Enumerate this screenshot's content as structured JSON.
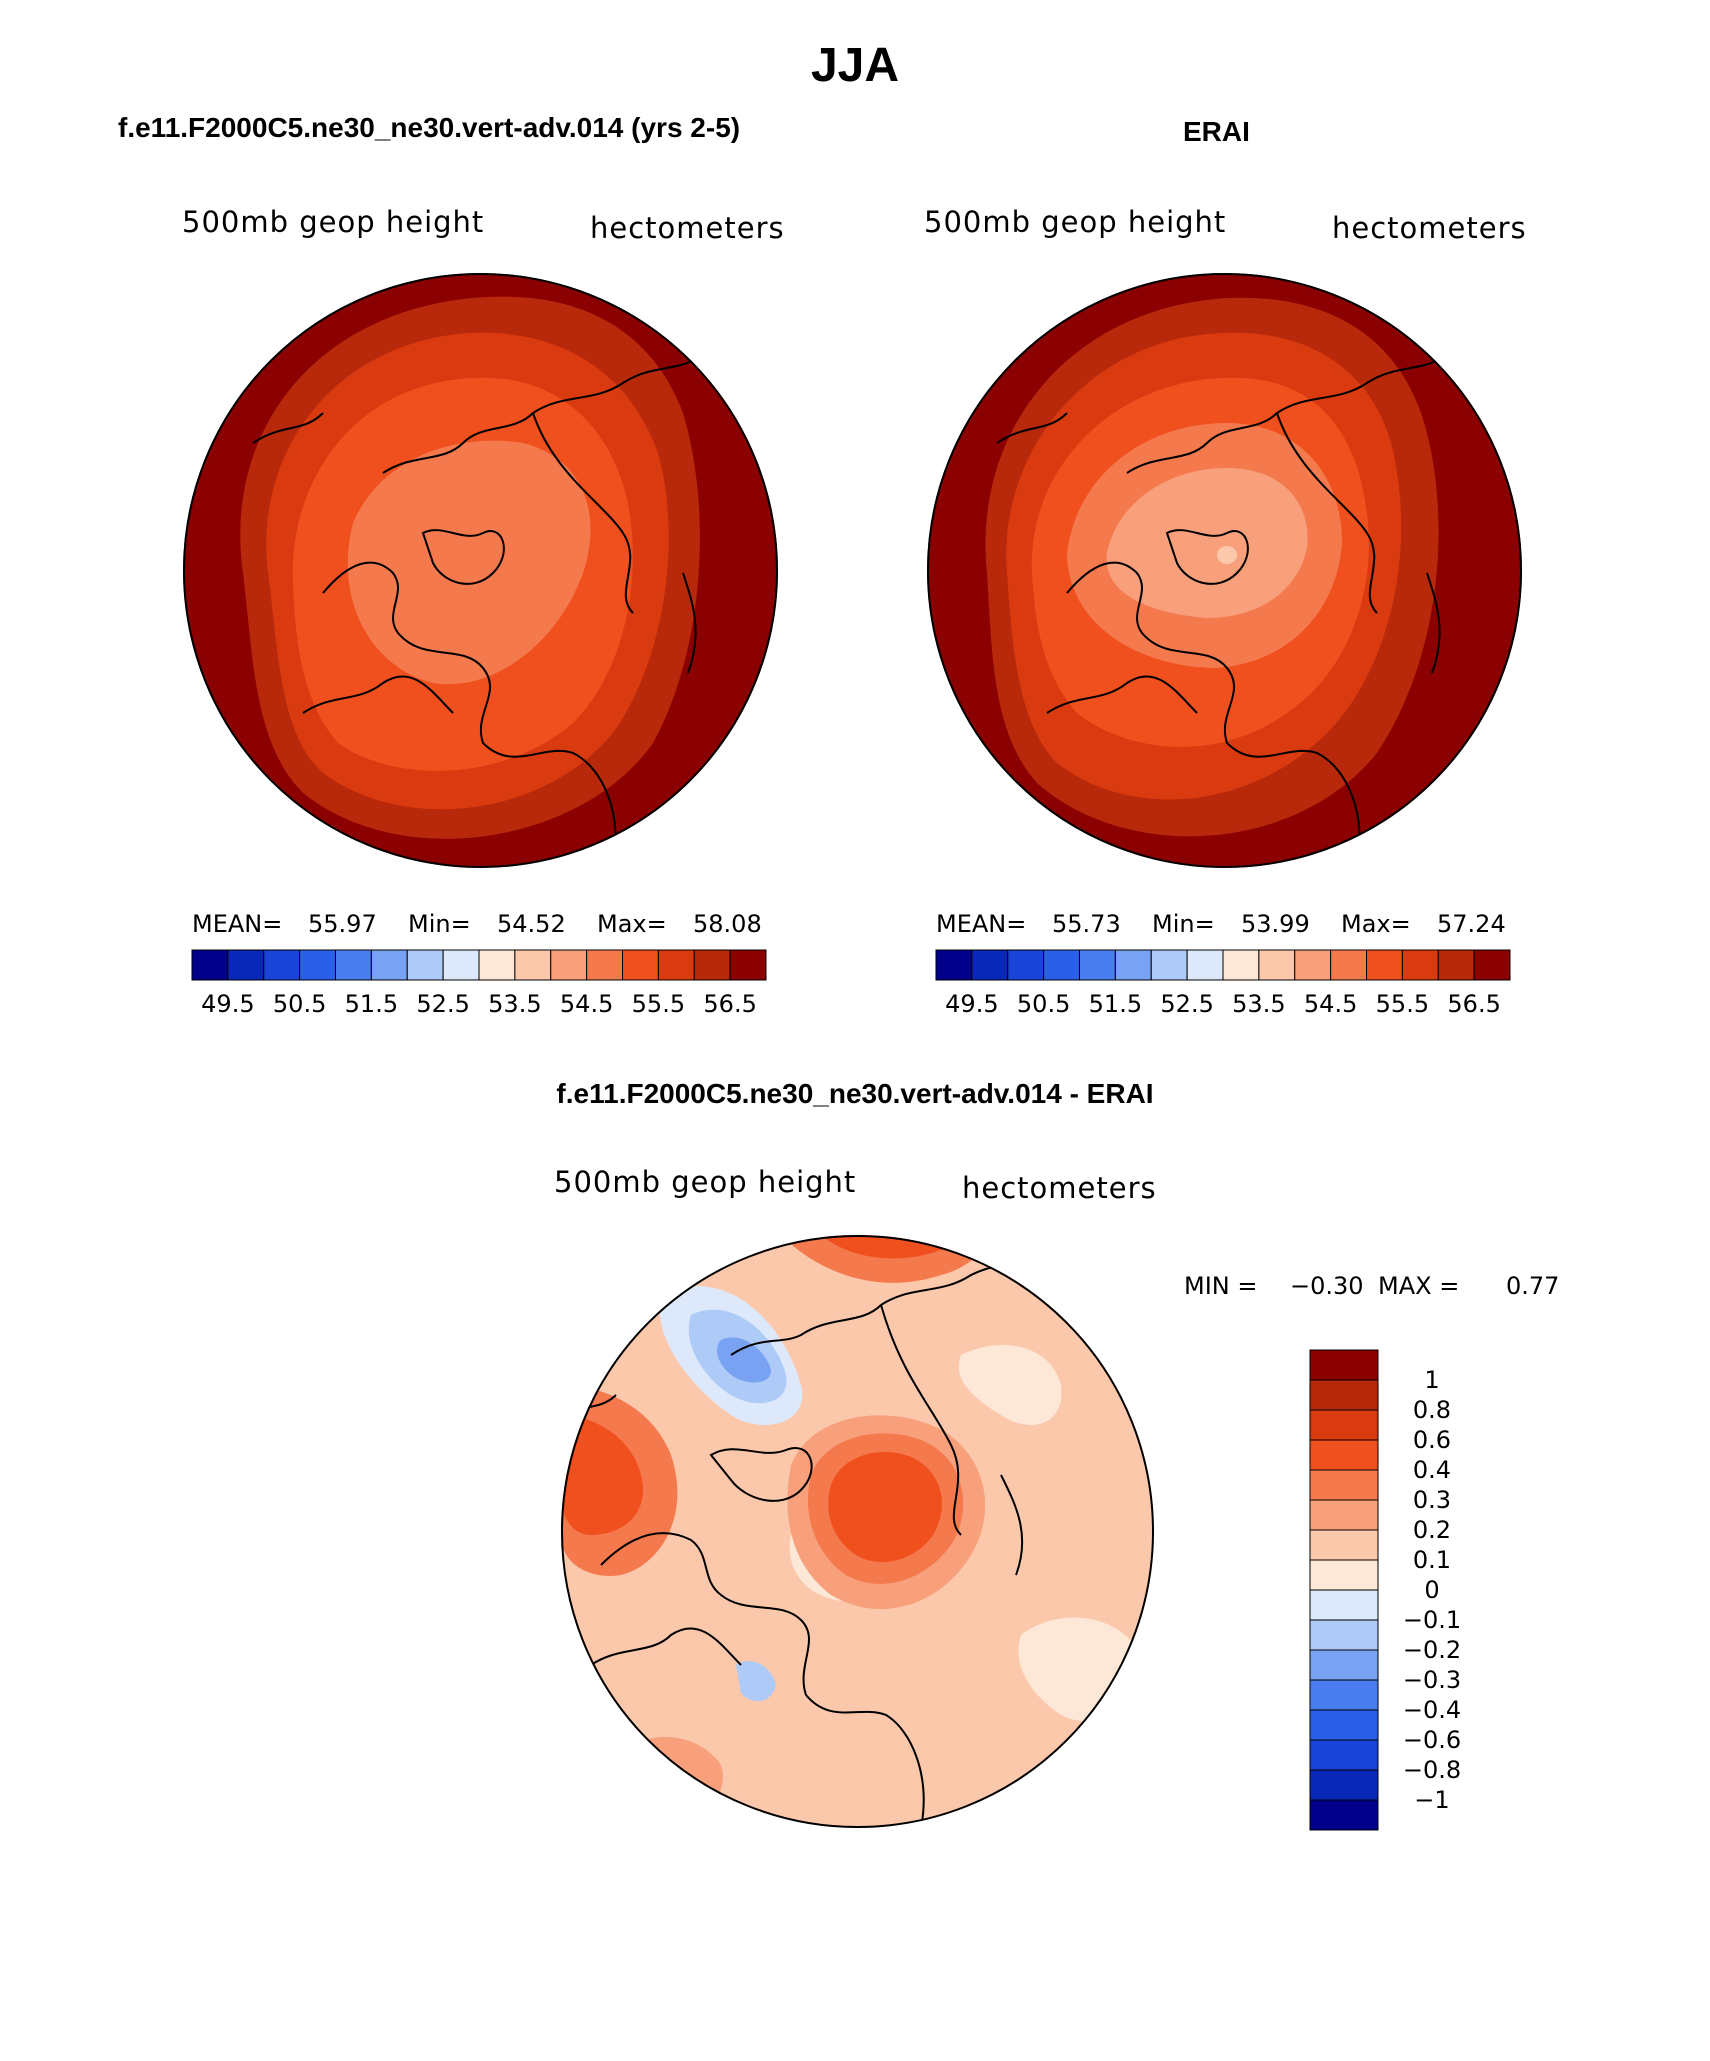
{
  "title": "JJA",
  "panels": [
    {
      "case": "f.e11.F2000C5.ne30_ne30.vert-adv.014 (yrs 2-5)",
      "variable": "500mb geop height",
      "units": "hectometers",
      "stats": {
        "mean_label": "MEAN=",
        "mean": "55.97",
        "min_label": "Min=",
        "min": "54.52",
        "max_label": "Max=",
        "max": "58.08"
      }
    },
    {
      "case": "ERAI",
      "variable": "500mb geop height",
      "units": "hectometers",
      "stats": {
        "mean_label": "MEAN=",
        "mean": "55.73",
        "min_label": "Min=",
        "min": "53.99",
        "max_label": "Max=",
        "max": "57.24"
      }
    }
  ],
  "diff_panel": {
    "case": "f.e11.F2000C5.ne30_ne30.vert-adv.014 - ERAI",
    "variable": "500mb geop height",
    "units": "hectometers",
    "min_label": "MIN =",
    "min": "−0.30",
    "max_label": "MAX =",
    "max": "0.77"
  },
  "colorbar_main": {
    "colors": [
      "#00008b",
      "#0a28b8",
      "#1a44d8",
      "#2a60e8",
      "#4a7ef0",
      "#7aa2f2",
      "#aecbf8",
      "#dde9fb",
      "#fde8d8",
      "#fbc8ac",
      "#f8a07c",
      "#f47a4e",
      "#f0501e",
      "#d93a10",
      "#b8280a",
      "#8b0000"
    ],
    "labels": [
      "49.5",
      "50.5",
      "51.5",
      "52.5",
      "53.5",
      "54.5",
      "55.5",
      "56.5"
    ]
  },
  "colorbar_diff": {
    "colors": [
      "#8b0000",
      "#b8280a",
      "#d93a10",
      "#f0501e",
      "#f47a4e",
      "#f8a07c",
      "#fbc8ac",
      "#fde8d8",
      "#dde9fb",
      "#aecbf8",
      "#7aa2f2",
      "#4a7ef0",
      "#2a60e8",
      "#1a44d8",
      "#0a28b8",
      "#00008b"
    ],
    "labels": [
      "1",
      "0.8",
      "0.6",
      "0.4",
      "0.3",
      "0.2",
      "0.1",
      "0",
      "−0.1",
      "−0.2",
      "−0.3",
      "−0.4",
      "−0.6",
      "−0.8",
      "−1"
    ]
  }
}
